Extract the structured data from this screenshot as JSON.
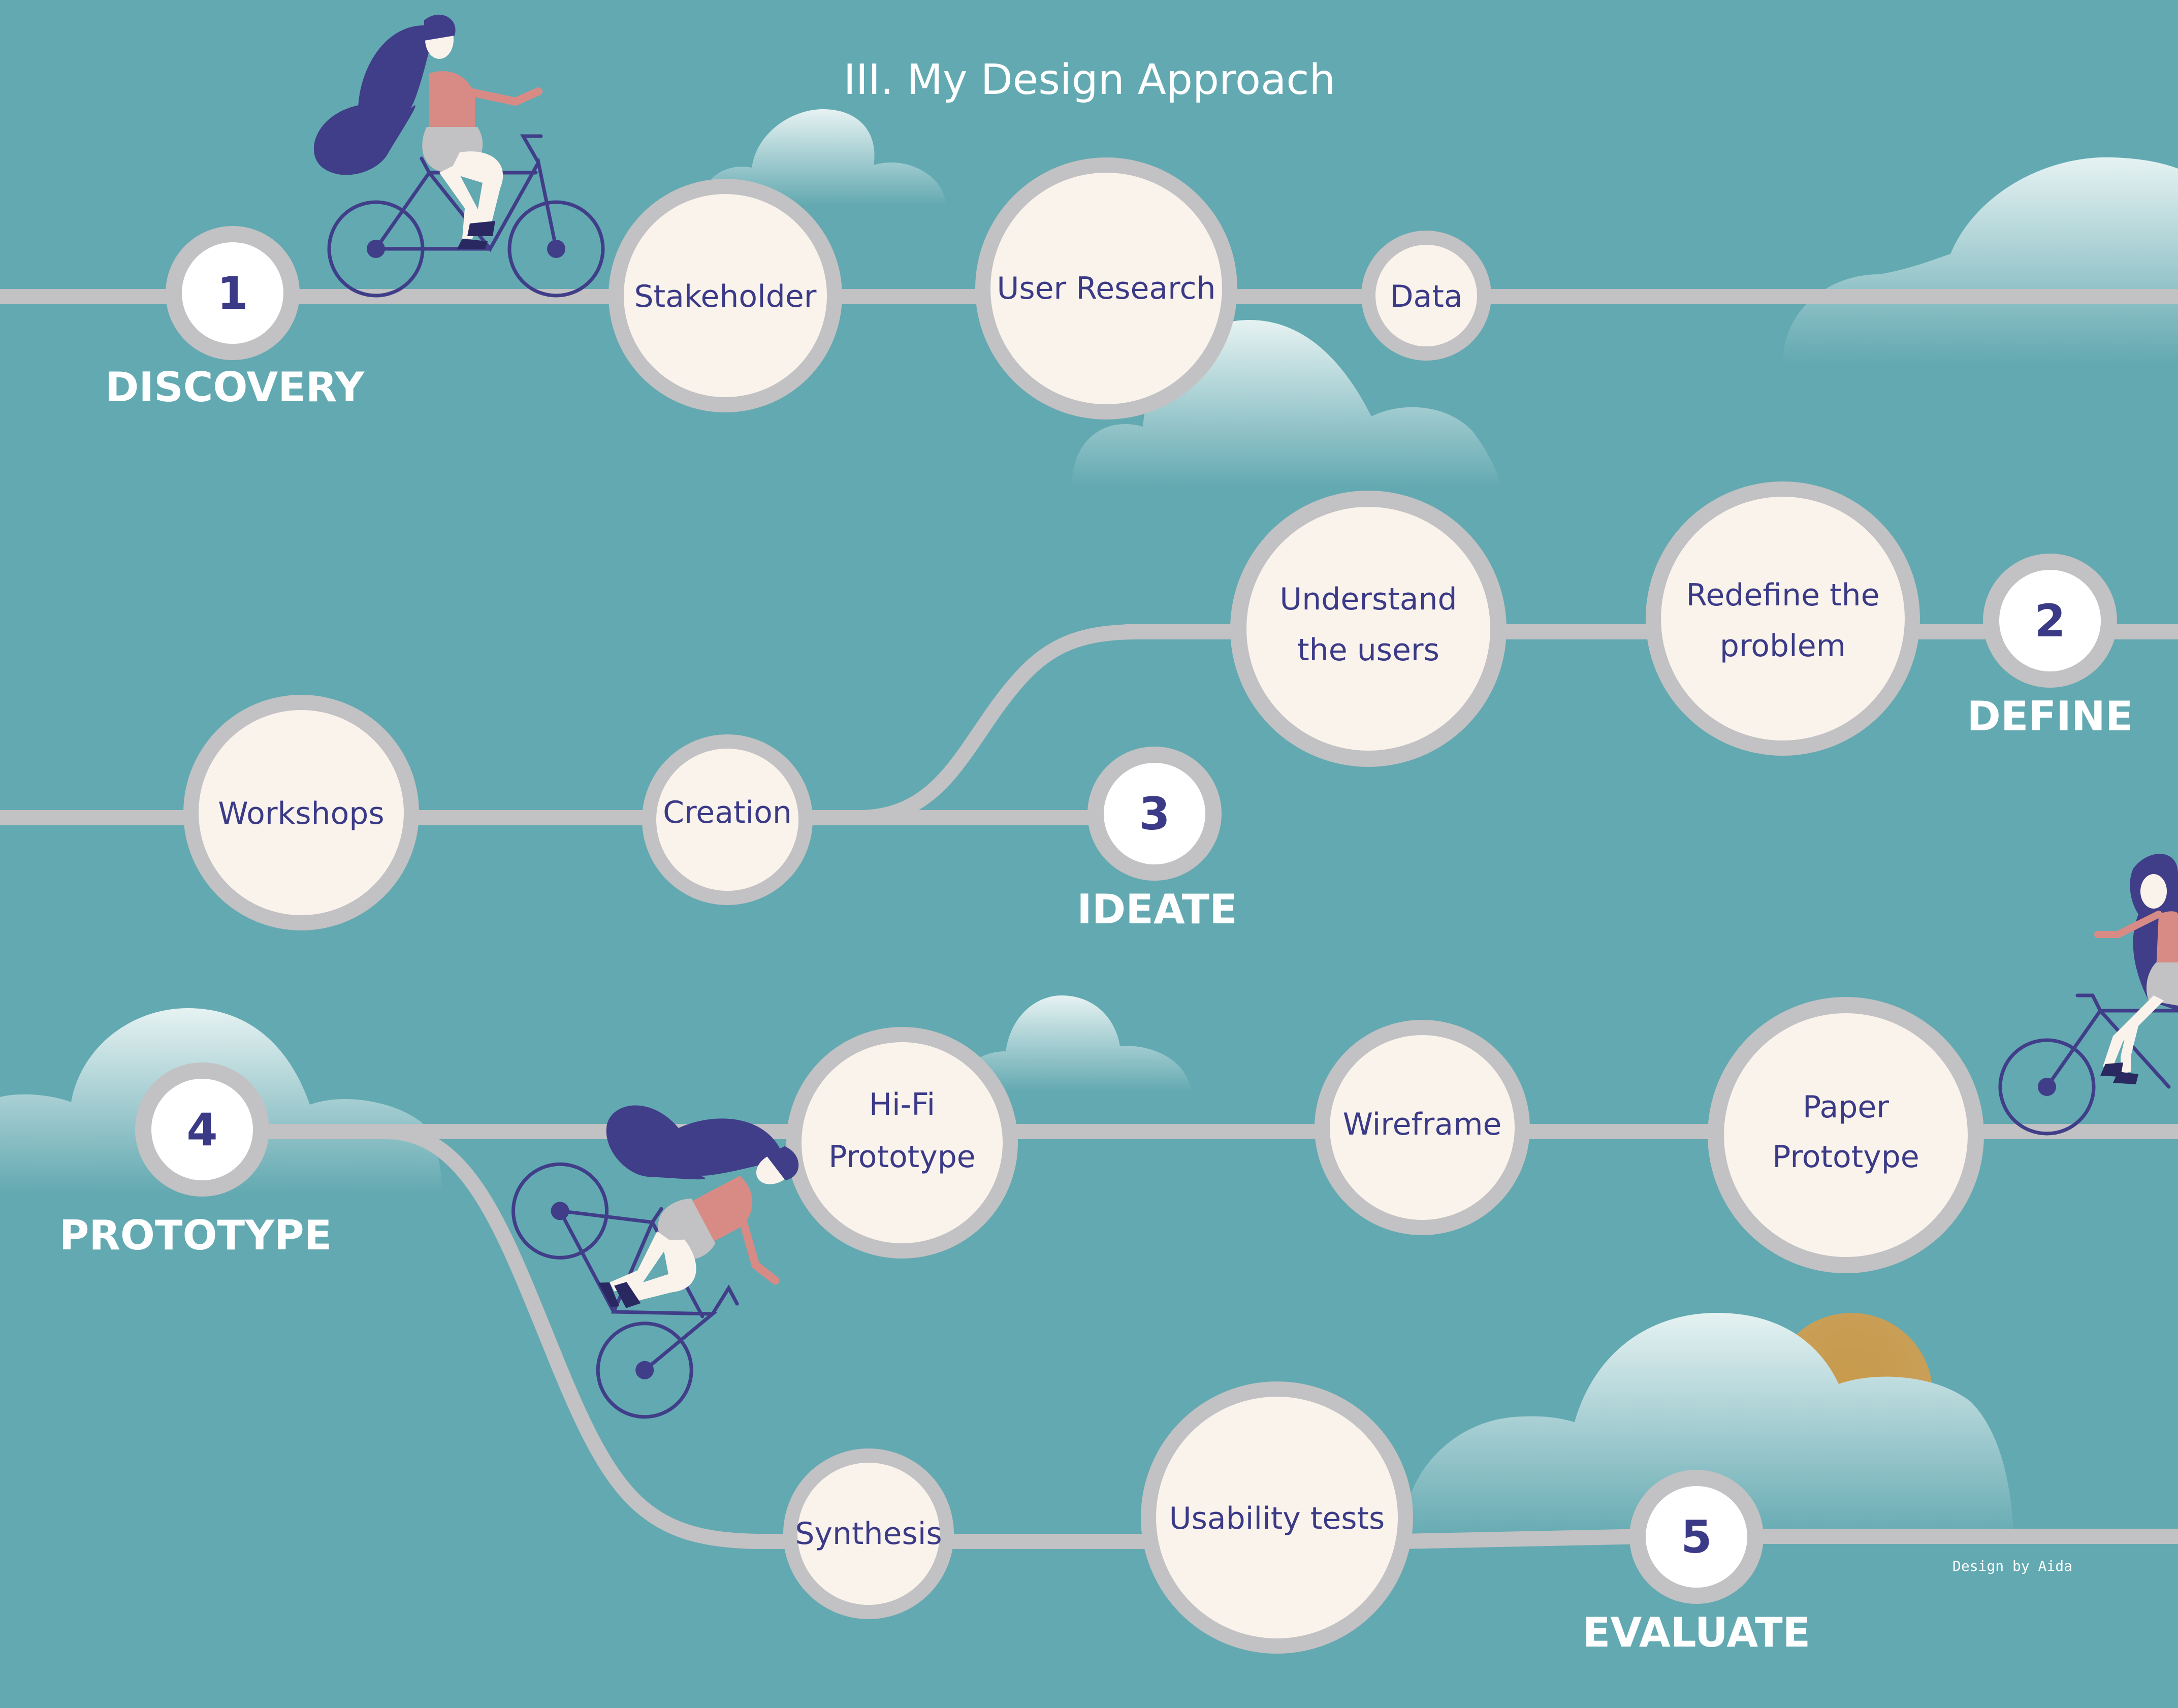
{
  "title": "III. My Design Approach",
  "credit": "Design by Aida",
  "colors": {
    "background": "#63a9b1",
    "track": "#c2c1c3",
    "bubble_fill": "#faf3ec",
    "text_dark": "#3b3a87",
    "hair": "#403d89",
    "shirt": "#d88b85",
    "sun": "#cd9a47"
  },
  "stages": [
    {
      "number": "1",
      "label": "DISCOVERY"
    },
    {
      "number": "2",
      "label": "DEFINE"
    },
    {
      "number": "3",
      "label": "IDEATE"
    },
    {
      "number": "4",
      "label": "PROTOTYPE"
    },
    {
      "number": "5",
      "label": "EVALUATE"
    }
  ],
  "steps": {
    "stakeholder": [
      "Stakeholder"
    ],
    "user_research": [
      "User Research"
    ],
    "data": [
      "Data"
    ],
    "understand_users": [
      "Understand",
      "the users"
    ],
    "redefine_problem": [
      "Redefine the",
      "problem"
    ],
    "workshops": [
      "Workshops"
    ],
    "creation": [
      "Creation"
    ],
    "hifi_prototype": [
      "Hi-Fi",
      "Prototype"
    ],
    "wireframe": [
      "Wireframe"
    ],
    "paper_prototype": [
      "Paper",
      "Prototype"
    ],
    "synthesis": [
      "Synthesis"
    ],
    "usability_tests": [
      "Usability tests"
    ]
  }
}
